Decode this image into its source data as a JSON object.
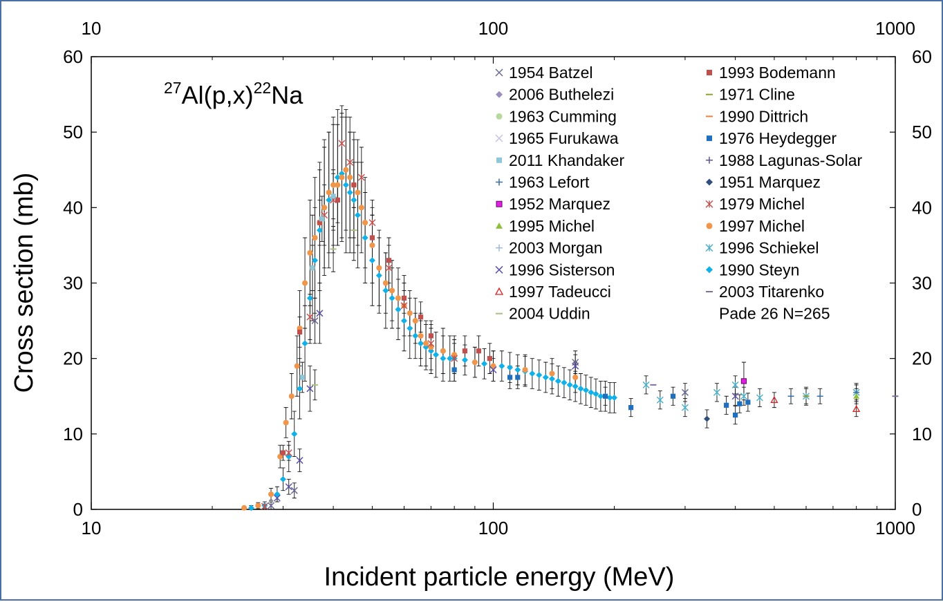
{
  "chart_data": {
    "type": "scatter",
    "title": "",
    "reaction": {
      "pre_sup": "27",
      "main": "Al(p,x)",
      "post_sup": "22",
      "post": "Na"
    },
    "xlabel": "Incident particle energy (MeV)",
    "ylabel": "Cross section (mb)",
    "xscale": "log",
    "xlim": [
      10,
      1000
    ],
    "ylim": [
      0,
      60
    ],
    "xticks": [
      10,
      100,
      1000
    ],
    "xtick_labels": [
      "10",
      "100",
      "1000"
    ],
    "yticks": [
      0,
      10,
      20,
      30,
      40,
      50,
      60
    ],
    "ytick_labels": [
      "0",
      "10",
      "20",
      "30",
      "40",
      "50",
      "60"
    ],
    "legend_position": "top-right",
    "legend": [
      {
        "label": "1954 Batzel",
        "marker": "x",
        "color": "#6b6b9a"
      },
      {
        "label": "2006 Buthelezi",
        "marker": "diamond",
        "color": "#9b8fc0"
      },
      {
        "label": "1963 Cumming",
        "marker": "circle",
        "color": "#b7d99e"
      },
      {
        "label": "1965 Furukawa",
        "marker": "x",
        "color": "#c9c3e0"
      },
      {
        "label": "2011 Khandaker",
        "marker": "square",
        "color": "#8ec8d8"
      },
      {
        "label": "1963 Lefort",
        "marker": "plus",
        "color": "#3b6ea5"
      },
      {
        "label": "1952 Marquez",
        "marker": "square-outline",
        "color": "#e020e0"
      },
      {
        "label": "1995 Michel",
        "marker": "triangle",
        "color": "#8fbf3f"
      },
      {
        "label": "2003 Morgan",
        "marker": "plus",
        "color": "#9fb8d8"
      },
      {
        "label": "1996 Sisterson",
        "marker": "x",
        "color": "#5a52a8"
      },
      {
        "label": "1997 Tadeucci",
        "marker": "triangle-outline",
        "color": "#e02020"
      },
      {
        "label": "2004 Uddin",
        "marker": "dash",
        "color": "#a8c080"
      },
      {
        "label": "1993 Bodemann",
        "marker": "square",
        "color": "#c0504d"
      },
      {
        "label": "1971 Cline",
        "marker": "dash",
        "color": "#8fa030"
      },
      {
        "label": "1990 Dittrich",
        "marker": "dash",
        "color": "#f0803c"
      },
      {
        "label": "1976 Heydegger",
        "marker": "square",
        "color": "#1f6fbf"
      },
      {
        "label": "1988 Lagunas-Solar",
        "marker": "plus",
        "color": "#6050a0"
      },
      {
        "label": "1951 Marquez",
        "marker": "diamond",
        "color": "#2f4f7f"
      },
      {
        "label": "1979 Michel",
        "marker": "star",
        "color": "#c0504d"
      },
      {
        "label": "1997 Michel",
        "marker": "circle",
        "color": "#f0964a"
      },
      {
        "label": "1996 Schiekel",
        "marker": "star",
        "color": "#4bacc6"
      },
      {
        "label": "1990 Steyn",
        "marker": "diamond",
        "color": "#10b0e8"
      },
      {
        "label": "2003 Titarenko",
        "marker": "dash",
        "color": "#7f6f9f"
      },
      {
        "label": "Pade 26 N=265",
        "marker": "none",
        "color": "#000000"
      }
    ],
    "series": [
      {
        "name": "1990 Steyn",
        "marker": "diamond",
        "color": "#10b0e8",
        "x": [
          25,
          27,
          29,
          30,
          31,
          32,
          33,
          34,
          35,
          36,
          37,
          38,
          39,
          40,
          41,
          42,
          43,
          44,
          45,
          46,
          48,
          50,
          52,
          54,
          56,
          58,
          60,
          62,
          64,
          66,
          68,
          70,
          72,
          75,
          78,
          80,
          85,
          90,
          95,
          100,
          105,
          110,
          115,
          120,
          125,
          130,
          135,
          140,
          145,
          150,
          155,
          160,
          165,
          170,
          175,
          180,
          185,
          190,
          195,
          200
        ],
        "y": [
          0.2,
          0.5,
          2,
          4,
          7,
          10,
          16,
          22,
          28,
          33,
          37,
          40,
          41,
          43,
          44,
          44.5,
          43,
          42,
          41,
          39,
          36,
          33,
          31,
          29,
          28,
          26.5,
          25,
          24,
          23,
          22,
          21.5,
          21,
          20.5,
          20,
          20,
          20,
          19.8,
          19.5,
          19.3,
          19,
          19,
          18.8,
          18.5,
          18.3,
          18,
          17.8,
          17.5,
          17.3,
          17,
          16.8,
          16.5,
          16.3,
          16,
          15.8,
          15.5,
          15.3,
          15,
          15,
          14.8,
          14.8
        ],
        "err": [
          0.3,
          0.5,
          1,
          1.5,
          2,
          3,
          4,
          5,
          6,
          7,
          8,
          9,
          9,
          9,
          9,
          9,
          9,
          8,
          8,
          7,
          6,
          6,
          5,
          5,
          4,
          4,
          4,
          4,
          3,
          3,
          3,
          3,
          3,
          3,
          3,
          3,
          2,
          2,
          2,
          2,
          2,
          2,
          2,
          2,
          2,
          2,
          2,
          2,
          2,
          2,
          2,
          2,
          2,
          2,
          2,
          2,
          2,
          2,
          2,
          2
        ]
      },
      {
        "name": "1997 Michel",
        "marker": "circle",
        "color": "#f0964a",
        "x": [
          24,
          26,
          28,
          29.5,
          30.5,
          31.5,
          32.5,
          33,
          34,
          35,
          35.5,
          36,
          37,
          38,
          39,
          40,
          41,
          42,
          43,
          44,
          45,
          46,
          47,
          48,
          50,
          52,
          54,
          56,
          58,
          60,
          62,
          64,
          66,
          68,
          70,
          75,
          80,
          90,
          100,
          120,
          140,
          160
        ],
        "y": [
          0.2,
          0.5,
          2,
          7,
          11.5,
          15,
          19,
          24,
          30,
          34,
          32,
          36,
          38,
          40,
          42,
          43,
          43,
          44,
          45,
          44,
          43,
          42,
          40,
          38,
          35,
          32,
          30,
          29,
          28,
          27,
          26,
          25,
          23,
          22,
          21.5,
          21,
          20.5,
          19.5,
          19,
          18.5,
          18,
          17.5
        ],
        "err": [
          0.2,
          0.4,
          0.8,
          1.5,
          2,
          3,
          4,
          5,
          6,
          7,
          7,
          8,
          8,
          8,
          8,
          8,
          8,
          8,
          8,
          8,
          7,
          7,
          6,
          6,
          5,
          5,
          4,
          4,
          4,
          4,
          3,
          3,
          3,
          3,
          3,
          3,
          2,
          2,
          2,
          2,
          2,
          2
        ]
      },
      {
        "name": "1993 Bodemann",
        "marker": "square",
        "color": "#c0504d",
        "x": [
          30,
          33,
          37,
          41,
          45,
          50,
          55,
          60,
          66,
          70,
          85,
          92,
          98
        ],
        "y": [
          7.5,
          23.5,
          38,
          41,
          43,
          36,
          33,
          28,
          25.5,
          23,
          21,
          21,
          20
        ],
        "err": [
          1,
          2,
          3,
          3,
          3,
          3,
          3,
          2,
          2,
          2,
          2,
          2,
          2
        ]
      },
      {
        "name": "1976 Heydegger",
        "marker": "square",
        "color": "#1f6fbf",
        "x": [
          80,
          110,
          115,
          190,
          220,
          280,
          380,
          400,
          410,
          430
        ],
        "y": [
          18.5,
          17.5,
          17.5,
          15,
          13.5,
          15,
          13.8,
          12.5,
          14,
          14.2
        ],
        "err": [
          1.5,
          1.5,
          1.5,
          1.2,
          1.2,
          1.2,
          1.2,
          1.2,
          1.2,
          1.2
        ]
      },
      {
        "name": "1979 Michel",
        "marker": "star",
        "color": "#c0504d",
        "x": [
          27,
          31,
          35,
          38,
          40,
          42,
          44,
          47,
          50,
          55,
          60,
          70,
          80
        ],
        "y": [
          0.4,
          7.5,
          25.5,
          39,
          41,
          48.5,
          46,
          44,
          38,
          32,
          27,
          22,
          20
        ],
        "err": [
          0.3,
          1,
          3,
          4,
          4,
          4,
          4,
          4,
          3,
          3,
          2,
          2,
          2
        ]
      },
      {
        "name": "1996 Schiekel",
        "marker": "star",
        "color": "#4bacc6",
        "x": [
          240,
          260,
          300,
          360,
          400,
          420,
          460,
          600,
          800
        ],
        "y": [
          16.5,
          14.5,
          13.5,
          15.5,
          16.5,
          15,
          14.8,
          15,
          15.5
        ],
        "err": [
          1.2,
          1.2,
          1.2,
          1.2,
          1.2,
          1.2,
          1.2,
          1.2,
          1.2
        ]
      },
      {
        "name": "1952 Marquez",
        "marker": "square-outline",
        "color": "#e020e0",
        "x": [
          420
        ],
        "y": [
          17
        ],
        "err": [
          2.5
        ]
      },
      {
        "name": "1951 Marquez",
        "marker": "diamond",
        "color": "#2f4f7f",
        "x": [
          340
        ],
        "y": [
          12
        ],
        "err": [
          1.2
        ]
      },
      {
        "name": "1997 Tadeucci",
        "marker": "triangle-outline",
        "color": "#e02020",
        "x": [
          500,
          800
        ],
        "y": [
          14.5,
          13.3
        ],
        "err": [
          1,
          1
        ]
      },
      {
        "name": "1954 Batzel",
        "marker": "x",
        "color": "#6b6b9a",
        "x": [
          28,
          32,
          36,
          160,
          300
        ],
        "y": [
          0.5,
          2.5,
          25,
          19.5,
          15.5
        ],
        "err": [
          0.5,
          1,
          3,
          1.5,
          1.2
        ]
      },
      {
        "name": "2011 Khandaker",
        "marker": "square",
        "color": "#8ec8d8",
        "x": [
          33.5,
          35.5,
          37.5,
          40
        ],
        "y": [
          17.5,
          32,
          38.5,
          41.5
        ],
        "err": [
          2,
          3,
          3,
          3
        ]
      },
      {
        "name": "1963 Lefort",
        "marker": "plus",
        "color": "#3b6ea5",
        "x": [
          550,
          650,
          800
        ],
        "y": [
          15,
          15,
          15.5
        ],
        "err": [
          1,
          1,
          1
        ]
      },
      {
        "name": "1996 Sisterson",
        "marker": "x",
        "color": "#5a52a8",
        "x": [
          29,
          31,
          33,
          35,
          37,
          100,
          160,
          400
        ],
        "y": [
          1.5,
          3,
          6.5,
          16,
          26,
          18.5,
          19,
          15
        ],
        "err": [
          0.5,
          1,
          1.5,
          3,
          4,
          1.5,
          1.5,
          1.2
        ]
      },
      {
        "name": "1995 Michel",
        "marker": "triangle",
        "color": "#8fbf3f",
        "x": [
          800
        ],
        "y": [
          15
        ],
        "err": [
          1
        ]
      },
      {
        "name": "2004 Uddin",
        "marker": "dash",
        "color": "#a8c080",
        "x": [
          36,
          40,
          45
        ],
        "y": [
          16.5,
          34.5,
          37
        ],
        "err": [
          2,
          3,
          3
        ]
      },
      {
        "name": "1971 Cline",
        "marker": "dash",
        "color": "#8fa030",
        "x": [
          600
        ],
        "y": [
          15
        ],
        "err": [
          1
        ]
      },
      {
        "name": "2003 Titarenko",
        "marker": "dash",
        "color": "#7f6f9f",
        "x": [
          250,
          1000
        ],
        "y": [
          16.5,
          15
        ],
        "err": [
          0,
          0
        ]
      }
    ]
  }
}
